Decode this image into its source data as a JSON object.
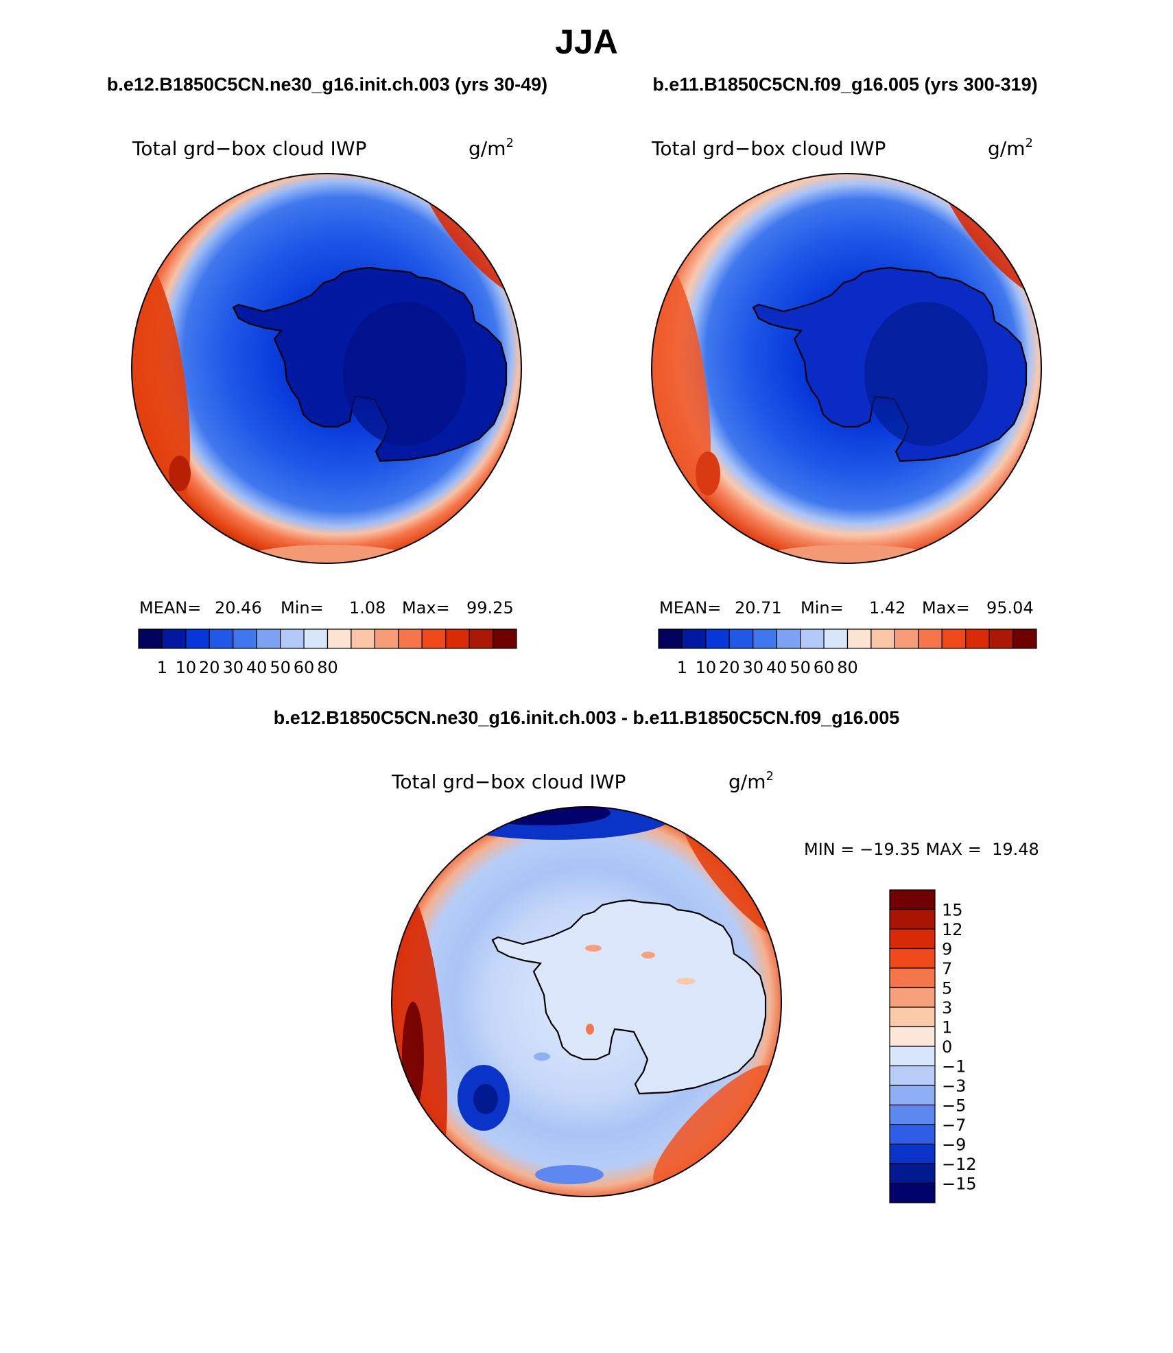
{
  "page": {
    "title": "JJA"
  },
  "chart_data": [
    {
      "type": "contour-map",
      "projection": "south polar stereographic",
      "heading": "b.e12.B1850C5CN.ne30_g16.init.ch.003 (yrs 30-49)",
      "variable": "Total grd−box cloud IWP",
      "units": "g/m",
      "units_exp": "2",
      "stats": {
        "mean_label": "MEAN=",
        "mean": "20.46",
        "min_label": "Min=",
        "min": "1.08",
        "max_label": "Max=",
        "max": "99.25"
      },
      "colorbar": {
        "tick_labels": [
          "1",
          "10",
          "20",
          "30",
          "40",
          "50",
          "60",
          "80"
        ],
        "colors": [
          "#01025b",
          "#0119a0",
          "#0537d9",
          "#2059e8",
          "#3f78ee",
          "#7ca2f3",
          "#b2c9f7",
          "#d9e7fb",
          "#fde3d2",
          "#fbc5a7",
          "#f69d77",
          "#f5764a",
          "#f04a1c",
          "#da2b07",
          "#ab1804",
          "#6f0000"
        ]
      }
    },
    {
      "type": "contour-map",
      "projection": "south polar stereographic",
      "heading": "b.e11.B1850C5CN.f09_g16.005 (yrs 300-319)",
      "variable": "Total grd−box cloud IWP",
      "units": "g/m",
      "units_exp": "2",
      "stats": {
        "mean_label": "MEAN=",
        "mean": "20.71",
        "min_label": "Min=",
        "min": "1.42",
        "max_label": "Max=",
        "max": "95.04"
      },
      "colorbar": {
        "tick_labels": [
          "1",
          "10",
          "20",
          "30",
          "40",
          "50",
          "60",
          "80"
        ],
        "colors": [
          "#01025b",
          "#0119a0",
          "#0537d9",
          "#2059e8",
          "#3f78ee",
          "#7ca2f3",
          "#b2c9f7",
          "#d9e7fb",
          "#fde3d2",
          "#fbc5a7",
          "#f69d77",
          "#f5764a",
          "#f04a1c",
          "#da2b07",
          "#ab1804",
          "#6f0000"
        ]
      }
    },
    {
      "type": "contour-map-difference",
      "projection": "south polar stereographic",
      "heading": "b.e12.B1850C5CN.ne30_g16.init.ch.003 - b.e11.B1850C5CN.f09_g16.005",
      "variable": "Total grd−box cloud IWP",
      "units": "g/m",
      "units_exp": "2",
      "minmax_text": "MIN = −19.35 MAX =  19.48",
      "stats": {
        "min": -19.35,
        "max": 19.48
      },
      "colorbar": {
        "tick_labels": [
          "15",
          "12",
          "9",
          "7",
          "5",
          "3",
          "1",
          "0",
          "−1",
          "−3",
          "−5",
          "−7",
          "−9",
          "−12",
          "−15"
        ],
        "colors": [
          "#6f0000",
          "#a81503",
          "#d82a07",
          "#f04a1c",
          "#f5764a",
          "#f8a07b",
          "#fbcaa9",
          "#fde7d9",
          "#d8e6fb",
          "#b7cdf8",
          "#8eaff4",
          "#5d88ef",
          "#2f5ee6",
          "#0a34c8",
          "#021a8f",
          "#01026a"
        ]
      }
    }
  ]
}
